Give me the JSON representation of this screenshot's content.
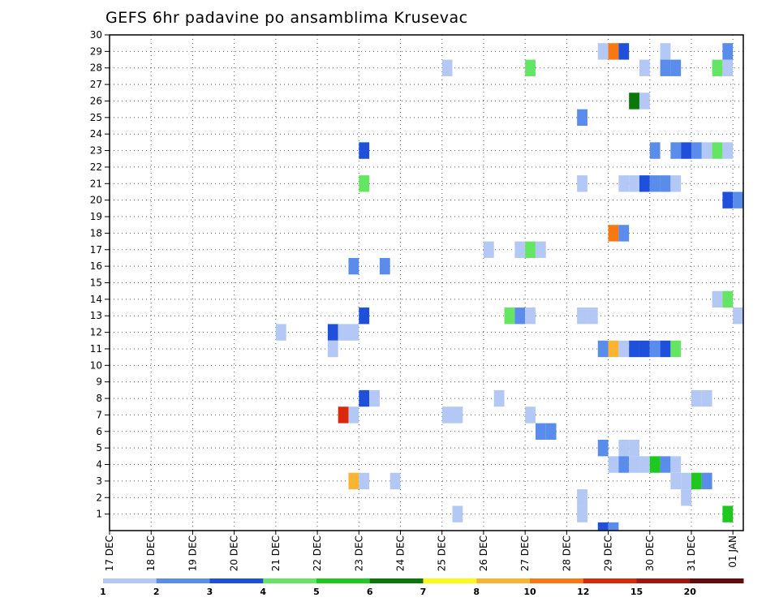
{
  "chart_data": {
    "type": "heatmap",
    "title": "GEFS 6hr padavine po ansamblima Krusevac",
    "xlabel": "",
    "ylabel": "",
    "x_ticks": [
      "17 DEC",
      "18 DEC",
      "19 DEC",
      "20 DEC",
      "21 DEC",
      "22 DEC",
      "23 DEC",
      "24 DEC",
      "25 DEC",
      "26 DEC",
      "27 DEC",
      "28 DEC",
      "29 DEC",
      "30 DEC",
      "31 DEC",
      "01 JAN"
    ],
    "xlim": [
      0,
      15.25
    ],
    "y_ticks": [
      1,
      2,
      3,
      4,
      5,
      6,
      7,
      8,
      9,
      10,
      11,
      12,
      13,
      14,
      15,
      16,
      17,
      18,
      19,
      20,
      21,
      22,
      23,
      24,
      25,
      26,
      27,
      28,
      29,
      30
    ],
    "ylim": [
      0,
      30
    ],
    "grid": true,
    "colorbar": {
      "ticks": [
        "1",
        "2",
        "3",
        "4",
        "5",
        "6",
        "7",
        "8",
        "10",
        "12",
        "15",
        "20"
      ],
      "colors": [
        "#b4c8f5",
        "#5a8ceb",
        "#1e50dc",
        "#64e664",
        "#1ec81e",
        "#0a780a",
        "#fafa14",
        "#fab432",
        "#fa7814",
        "#dc280a",
        "#a01414",
        "#640a0a"
      ]
    },
    "cells": [
      {
        "day": 11.75,
        "member": 29,
        "level": 1
      },
      {
        "day": 12.0,
        "member": 29,
        "level": 9
      },
      {
        "day": 12.25,
        "member": 29,
        "level": 3
      },
      {
        "day": 13.25,
        "member": 29,
        "level": 1
      },
      {
        "day": 14.75,
        "member": 29,
        "level": 2
      },
      {
        "day": 8.0,
        "member": 28,
        "level": 1
      },
      {
        "day": 10.0,
        "member": 28,
        "level": 4
      },
      {
        "day": 12.75,
        "member": 28,
        "level": 1
      },
      {
        "day": 13.25,
        "member": 28,
        "level": 2
      },
      {
        "day": 13.5,
        "member": 28,
        "level": 2
      },
      {
        "day": 14.5,
        "member": 28,
        "level": 4
      },
      {
        "day": 14.75,
        "member": 28,
        "level": 1
      },
      {
        "day": 12.5,
        "member": 26,
        "level": 6
      },
      {
        "day": 12.75,
        "member": 26,
        "level": 1
      },
      {
        "day": 11.25,
        "member": 25,
        "level": 2
      },
      {
        "day": 6.0,
        "member": 23,
        "level": 3
      },
      {
        "day": 13.0,
        "member": 23,
        "level": 2
      },
      {
        "day": 13.5,
        "member": 23,
        "level": 2
      },
      {
        "day": 13.75,
        "member": 23,
        "level": 3
      },
      {
        "day": 14.0,
        "member": 23,
        "level": 2
      },
      {
        "day": 14.25,
        "member": 23,
        "level": 1
      },
      {
        "day": 14.5,
        "member": 23,
        "level": 4
      },
      {
        "day": 14.75,
        "member": 23,
        "level": 1
      },
      {
        "day": 6.0,
        "member": 21,
        "level": 4
      },
      {
        "day": 11.25,
        "member": 21,
        "level": 1
      },
      {
        "day": 12.25,
        "member": 21,
        "level": 1
      },
      {
        "day": 12.5,
        "member": 21,
        "level": 1
      },
      {
        "day": 12.75,
        "member": 21,
        "level": 3
      },
      {
        "day": 13.0,
        "member": 21,
        "level": 2
      },
      {
        "day": 13.25,
        "member": 21,
        "level": 2
      },
      {
        "day": 13.5,
        "member": 21,
        "level": 1
      },
      {
        "day": 14.75,
        "member": 20,
        "level": 3
      },
      {
        "day": 15.0,
        "member": 20,
        "level": 2
      },
      {
        "day": 12.0,
        "member": 18,
        "level": 9
      },
      {
        "day": 12.25,
        "member": 18,
        "level": 2
      },
      {
        "day": 9.0,
        "member": 17,
        "level": 1
      },
      {
        "day": 9.75,
        "member": 17,
        "level": 1
      },
      {
        "day": 10.0,
        "member": 17,
        "level": 4
      },
      {
        "day": 10.25,
        "member": 17,
        "level": 1
      },
      {
        "day": 5.75,
        "member": 16,
        "level": 2
      },
      {
        "day": 6.5,
        "member": 16,
        "level": 2
      },
      {
        "day": 14.5,
        "member": 14,
        "level": 1
      },
      {
        "day": 14.75,
        "member": 14,
        "level": 4
      },
      {
        "day": 6.0,
        "member": 13,
        "level": 3
      },
      {
        "day": 9.5,
        "member": 13,
        "level": 4
      },
      {
        "day": 9.75,
        "member": 13,
        "level": 2
      },
      {
        "day": 10.0,
        "member": 13,
        "level": 1
      },
      {
        "day": 11.25,
        "member": 13,
        "level": 1
      },
      {
        "day": 11.5,
        "member": 13,
        "level": 1
      },
      {
        "day": 15.0,
        "member": 13,
        "level": 1
      },
      {
        "day": 4.0,
        "member": 12,
        "level": 1
      },
      {
        "day": 5.25,
        "member": 12,
        "level": 3
      },
      {
        "day": 5.5,
        "member": 12,
        "level": 1
      },
      {
        "day": 5.75,
        "member": 12,
        "level": 1
      },
      {
        "day": 5.25,
        "member": 11,
        "level": 1
      },
      {
        "day": 11.75,
        "member": 11,
        "level": 2
      },
      {
        "day": 12.0,
        "member": 11,
        "level": 8
      },
      {
        "day": 12.25,
        "member": 11,
        "level": 1
      },
      {
        "day": 12.5,
        "member": 11,
        "level": 3
      },
      {
        "day": 12.75,
        "member": 11,
        "level": 3
      },
      {
        "day": 13.0,
        "member": 11,
        "level": 2
      },
      {
        "day": 13.25,
        "member": 11,
        "level": 3
      },
      {
        "day": 13.5,
        "member": 11,
        "level": 4
      },
      {
        "day": 6.0,
        "member": 8,
        "level": 3
      },
      {
        "day": 6.25,
        "member": 8,
        "level": 1
      },
      {
        "day": 9.25,
        "member": 8,
        "level": 1
      },
      {
        "day": 14.0,
        "member": 8,
        "level": 1
      },
      {
        "day": 14.25,
        "member": 8,
        "level": 1
      },
      {
        "day": 5.5,
        "member": 7,
        "level": 10
      },
      {
        "day": 5.75,
        "member": 7,
        "level": 1
      },
      {
        "day": 8.0,
        "member": 7,
        "level": 1
      },
      {
        "day": 8.25,
        "member": 7,
        "level": 1
      },
      {
        "day": 10.0,
        "member": 7,
        "level": 1
      },
      {
        "day": 10.25,
        "member": 6,
        "level": 2
      },
      {
        "day": 10.5,
        "member": 6,
        "level": 2
      },
      {
        "day": 11.75,
        "member": 5,
        "level": 2
      },
      {
        "day": 12.25,
        "member": 5,
        "level": 1
      },
      {
        "day": 12.5,
        "member": 5,
        "level": 1
      },
      {
        "day": 12.0,
        "member": 4,
        "level": 1
      },
      {
        "day": 12.25,
        "member": 4,
        "level": 2
      },
      {
        "day": 12.5,
        "member": 4,
        "level": 1
      },
      {
        "day": 12.75,
        "member": 4,
        "level": 1
      },
      {
        "day": 13.0,
        "member": 4,
        "level": 5
      },
      {
        "day": 13.25,
        "member": 4,
        "level": 2
      },
      {
        "day": 13.5,
        "member": 4,
        "level": 1
      },
      {
        "day": 5.75,
        "member": 3,
        "level": 8
      },
      {
        "day": 6.0,
        "member": 3,
        "level": 1
      },
      {
        "day": 6.75,
        "member": 3,
        "level": 1
      },
      {
        "day": 13.5,
        "member": 3,
        "level": 1
      },
      {
        "day": 13.75,
        "member": 3,
        "level": 1
      },
      {
        "day": 14.0,
        "member": 3,
        "level": 5
      },
      {
        "day": 14.25,
        "member": 3,
        "level": 2
      },
      {
        "day": 11.25,
        "member": 2,
        "level": 1
      },
      {
        "day": 13.75,
        "member": 2,
        "level": 1
      },
      {
        "day": 8.25,
        "member": 1,
        "level": 1
      },
      {
        "day": 11.25,
        "member": 1,
        "level": 1
      },
      {
        "day": 14.75,
        "member": 1,
        "level": 5
      },
      {
        "day": 11.75,
        "member": 0,
        "level": 3
      },
      {
        "day": 12.0,
        "member": 0,
        "level": 2
      }
    ]
  }
}
